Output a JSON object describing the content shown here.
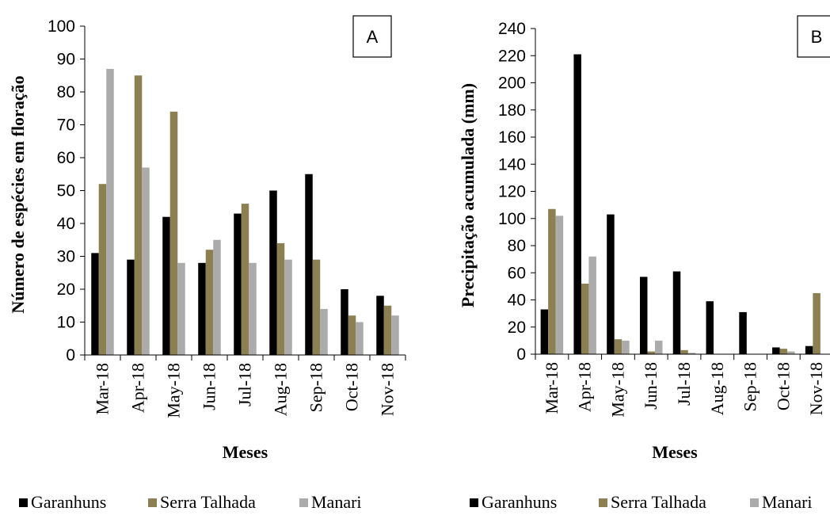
{
  "colors": {
    "Garanhuns": "#000000",
    "Serra Talhada": "#8c7f52",
    "Manari": "#ababab",
    "axis": "#000000"
  },
  "chart_data": [
    {
      "type": "bar",
      "panel_label": "A",
      "ylabel": "Número de espécies em floração",
      "xlabel": "Meses",
      "ylim": [
        0,
        100
      ],
      "yticks": [
        0,
        10,
        20,
        30,
        40,
        50,
        60,
        70,
        80,
        90,
        100
      ],
      "categories": [
        "Mar-18",
        "Apr-18",
        "May-18",
        "Jun-18",
        "Jul-18",
        "Aug-18",
        "Sep-18",
        "Oct-18",
        "Nov-18"
      ],
      "series": [
        {
          "name": "Garanhuns",
          "values": [
            31,
            29,
            42,
            28,
            43,
            50,
            55,
            20,
            18
          ]
        },
        {
          "name": "Serra Talhada",
          "values": [
            52,
            85,
            74,
            32,
            46,
            34,
            29,
            12,
            15
          ]
        },
        {
          "name": "Manari",
          "values": [
            87,
            57,
            28,
            35,
            28,
            29,
            14,
            10,
            12
          ]
        }
      ],
      "legend_position": "bottom"
    },
    {
      "type": "bar",
      "panel_label": "B",
      "ylabel": "Precipitação acumulada (mm)",
      "xlabel": "Meses",
      "ylim": [
        0,
        240
      ],
      "yticks": [
        0,
        20,
        40,
        60,
        80,
        100,
        120,
        140,
        160,
        180,
        200,
        220,
        240
      ],
      "categories": [
        "Mar-18",
        "Apr-18",
        "May-18",
        "Jun-18",
        "Jul-18",
        "Aug-18",
        "Sep-18",
        "Oct-18",
        "Nov-18"
      ],
      "series": [
        {
          "name": "Garanhuns",
          "values": [
            33,
            221,
            103,
            57,
            61,
            39,
            31,
            5,
            6
          ]
        },
        {
          "name": "Serra Talhada",
          "values": [
            107,
            52,
            11,
            2,
            3,
            0,
            0,
            4,
            45
          ]
        },
        {
          "name": "Manari",
          "values": [
            102,
            72,
            10,
            10,
            1,
            0,
            0,
            2,
            0
          ]
        }
      ],
      "legend_position": "bottom"
    }
  ]
}
